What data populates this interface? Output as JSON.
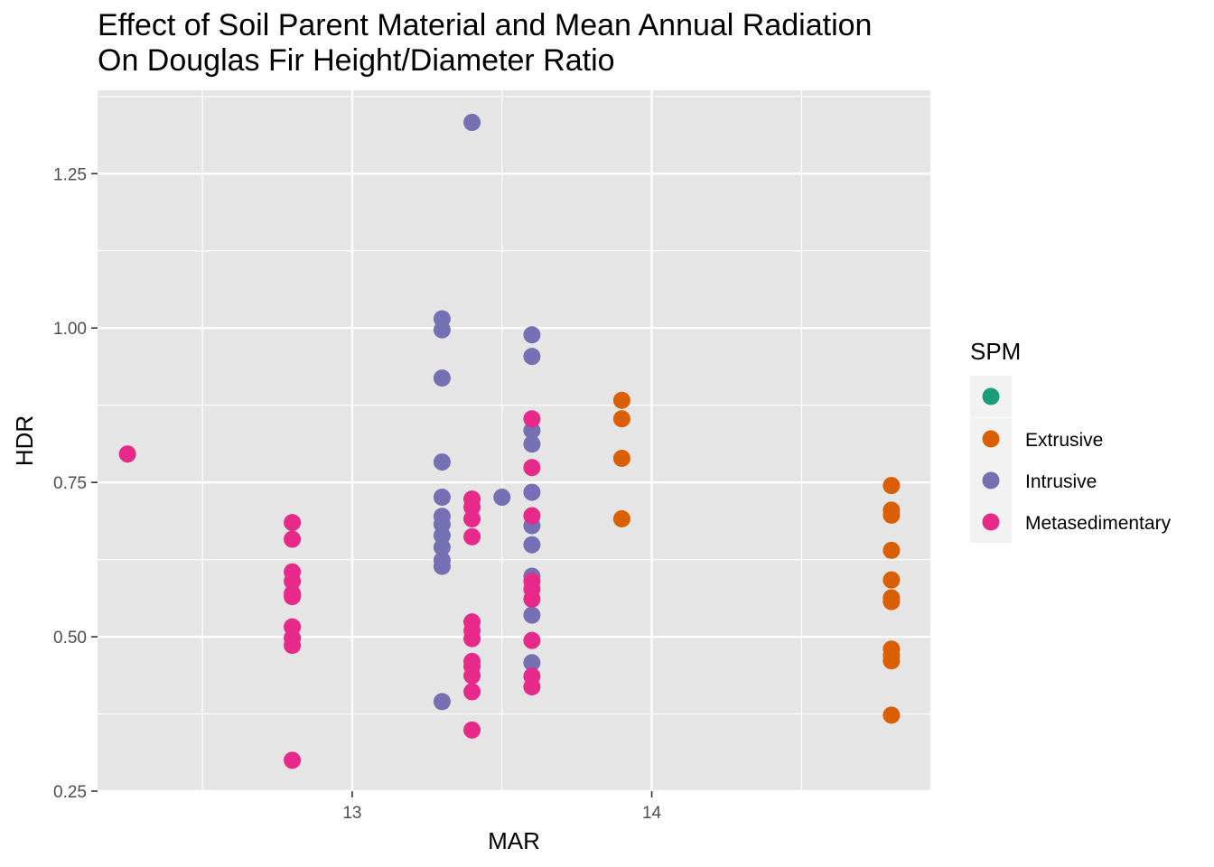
{
  "chart_data": {
    "type": "scatter",
    "title": "Effect of Soil Parent Material and Mean Annual Radiation",
    "subtitle": "On Douglas Fir Height/Diameter Ratio",
    "xlabel": "MAR",
    "ylabel": "HDR",
    "xlim": [
      12.15,
      14.93
    ],
    "ylim": [
      0.25,
      1.385
    ],
    "x_ticks": [
      13,
      14
    ],
    "x_minor_ticks": [
      12.5,
      13.5,
      14.5
    ],
    "y_ticks": [
      0.25,
      0.5,
      0.75,
      1.0,
      1.25
    ],
    "y_tick_labels": [
      "0.25",
      "0.50",
      "0.75",
      "1.00",
      "1.25"
    ],
    "y_minor_ticks": [
      0.375,
      0.625,
      0.875,
      1.125,
      1.375
    ],
    "grid": true,
    "legend_position": "right",
    "legend_title": "SPM",
    "panel_color": "#e5e5e5",
    "series": [
      {
        "name": "",
        "color": "#1b9e77",
        "points": []
      },
      {
        "name": "Extrusive",
        "color": "#d95f02",
        "points": [
          [
            13.9,
            0.883
          ],
          [
            13.9,
            0.853
          ],
          [
            13.9,
            0.789
          ],
          [
            13.9,
            0.691
          ],
          [
            14.8,
            0.745
          ],
          [
            14.8,
            0.705
          ],
          [
            14.8,
            0.697
          ],
          [
            14.8,
            0.64
          ],
          [
            14.8,
            0.592
          ],
          [
            14.8,
            0.563
          ],
          [
            14.8,
            0.557
          ],
          [
            14.8,
            0.48
          ],
          [
            14.8,
            0.47
          ],
          [
            14.8,
            0.461
          ],
          [
            14.8,
            0.373
          ]
        ]
      },
      {
        "name": "Intrusive",
        "color": "#7570b3",
        "points": [
          [
            13.3,
            1.015
          ],
          [
            13.3,
            0.997
          ],
          [
            13.3,
            0.919
          ],
          [
            13.3,
            0.783
          ],
          [
            13.3,
            0.726
          ],
          [
            13.3,
            0.695
          ],
          [
            13.3,
            0.682
          ],
          [
            13.3,
            0.664
          ],
          [
            13.3,
            0.645
          ],
          [
            13.3,
            0.624
          ],
          [
            13.3,
            0.614
          ],
          [
            13.3,
            0.395
          ],
          [
            13.4,
            1.333
          ],
          [
            13.5,
            0.726
          ],
          [
            13.6,
            0.989
          ],
          [
            13.6,
            0.954
          ],
          [
            13.6,
            0.834
          ],
          [
            13.6,
            0.812
          ],
          [
            13.6,
            0.734
          ],
          [
            13.6,
            0.68
          ],
          [
            13.6,
            0.649
          ],
          [
            13.6,
            0.598
          ],
          [
            13.6,
            0.535
          ],
          [
            13.6,
            0.458
          ]
        ]
      },
      {
        "name": "Metasedimentary",
        "color": "#e7298a",
        "points": [
          [
            12.25,
            0.796
          ],
          [
            12.8,
            0.685
          ],
          [
            12.8,
            0.658
          ],
          [
            12.8,
            0.605
          ],
          [
            12.8,
            0.59
          ],
          [
            12.8,
            0.57
          ],
          [
            12.8,
            0.565
          ],
          [
            12.8,
            0.516
          ],
          [
            12.8,
            0.498
          ],
          [
            12.8,
            0.486
          ],
          [
            12.8,
            0.3
          ],
          [
            13.4,
            0.723
          ],
          [
            13.4,
            0.71
          ],
          [
            13.4,
            0.691
          ],
          [
            13.4,
            0.662
          ],
          [
            13.4,
            0.524
          ],
          [
            13.4,
            0.51
          ],
          [
            13.4,
            0.497
          ],
          [
            13.4,
            0.46
          ],
          [
            13.4,
            0.452
          ],
          [
            13.4,
            0.437
          ],
          [
            13.4,
            0.411
          ],
          [
            13.4,
            0.349
          ],
          [
            13.6,
            0.853
          ],
          [
            13.6,
            0.774
          ],
          [
            13.6,
            0.696
          ],
          [
            13.6,
            0.59
          ],
          [
            13.6,
            0.577
          ],
          [
            13.6,
            0.561
          ],
          [
            13.6,
            0.494
          ],
          [
            13.6,
            0.436
          ],
          [
            13.6,
            0.419
          ]
        ]
      }
    ]
  }
}
